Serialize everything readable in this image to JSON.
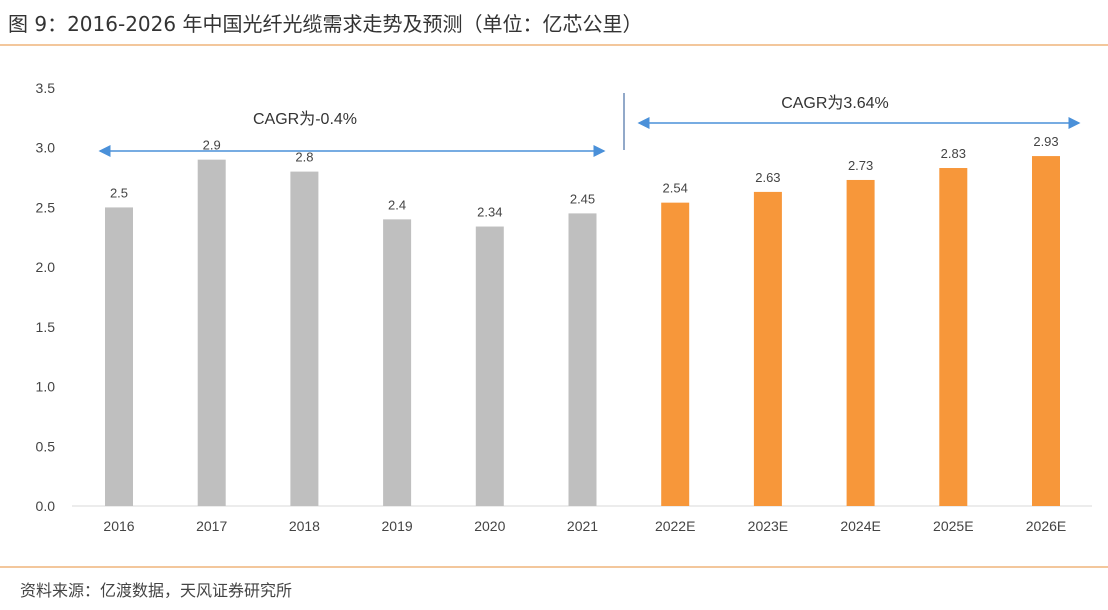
{
  "chart_data": {
    "type": "bar",
    "title": "图 9：2016-2026 年中国光纤光缆需求走势及预测（单位：亿芯公里）",
    "categories": [
      "2016",
      "2017",
      "2018",
      "2019",
      "2020",
      "2021",
      "2022E",
      "2023E",
      "2024E",
      "2025E",
      "2026E"
    ],
    "values": [
      2.5,
      2.9,
      2.8,
      2.4,
      2.34,
      2.45,
      2.54,
      2.63,
      2.73,
      2.83,
      2.93
    ],
    "data_labels": [
      "2.5",
      "2.9",
      "2.8",
      "2.4",
      "2.34",
      "2.45",
      "2.54",
      "2.63",
      "2.73",
      "2.83",
      "2.93"
    ],
    "ylim": [
      0,
      3.5
    ],
    "yticks": [
      "0.0",
      "0.5",
      "1.0",
      "1.5",
      "2.0",
      "2.5",
      "3.0",
      "3.5"
    ],
    "grid": false,
    "colors": {
      "actual": "#bfbfbf",
      "forecast": "#f7973a",
      "arrow": "#4a90d9"
    },
    "annotations": [
      {
        "text": "CAGR为-0.4%",
        "from": "2016",
        "to": "2021"
      },
      {
        "text": "CAGR为3.64%",
        "from": "2022E",
        "to": "2026E"
      }
    ]
  },
  "source": "资料来源：亿渡数据，天风证券研究所"
}
